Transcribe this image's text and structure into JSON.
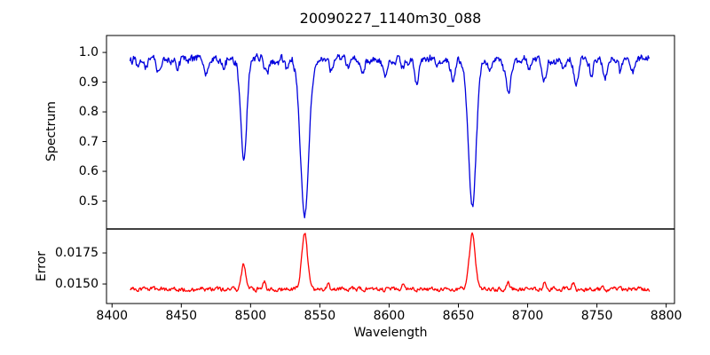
{
  "figure": {
    "title": "20090227_1140m30_088",
    "background_color": "#ffffff",
    "axes_color": "#000000"
  },
  "x_axis": {
    "label": "Wavelength",
    "xlim": [
      8396,
      8806
    ],
    "ticks": [
      {
        "value": 8400,
        "label": "8400"
      },
      {
        "value": 8450,
        "label": "8450"
      },
      {
        "value": 8500,
        "label": "8500"
      },
      {
        "value": 8550,
        "label": "8550"
      },
      {
        "value": 8600,
        "label": "8600"
      },
      {
        "value": 8650,
        "label": "8650"
      },
      {
        "value": 8700,
        "label": "8700"
      },
      {
        "value": 8750,
        "label": "8750"
      },
      {
        "value": 8800,
        "label": "8800"
      }
    ]
  },
  "chart_data": [
    {
      "type": "line",
      "name": "spectrum",
      "ylabel": "Spectrum",
      "line_color": "#0000dd",
      "ylim": [
        0.406,
        1.057
      ],
      "yticks": [
        {
          "value": 1.0,
          "label": "1.0"
        },
        {
          "value": 0.9,
          "label": "0.9"
        },
        {
          "value": 0.8,
          "label": "0.8"
        },
        {
          "value": 0.7,
          "label": "0.7"
        },
        {
          "value": 0.6,
          "label": "0.6"
        },
        {
          "value": 0.5,
          "label": "0.5"
        }
      ],
      "x_range": [
        8413,
        8788
      ],
      "continuum_level": 0.982,
      "noise_amplitude": 0.011,
      "noise_seed": 20090227,
      "absorption_lines": [
        {
          "center": 8418,
          "min_value": 0.955,
          "sigma": 1.2
        },
        {
          "center": 8424,
          "min_value": 0.945,
          "sigma": 1.3
        },
        {
          "center": 8434,
          "min_value": 0.93,
          "sigma": 1.5
        },
        {
          "center": 8447,
          "min_value": 0.95,
          "sigma": 1.2
        },
        {
          "center": 8468,
          "min_value": 0.925,
          "sigma": 1.7
        },
        {
          "center": 8481,
          "min_value": 0.95,
          "sigma": 1.2
        },
        {
          "center": 8495,
          "min_value": 0.645,
          "sigma": 2.2
        },
        {
          "center": 8512,
          "min_value": 0.925,
          "sigma": 1.5
        },
        {
          "center": 8526,
          "min_value": 0.945,
          "sigma": 1.2
        },
        {
          "center": 8539,
          "min_value": 0.45,
          "sigma": 3.0
        },
        {
          "center": 8558,
          "min_value": 0.945,
          "sigma": 1.3
        },
        {
          "center": 8570,
          "min_value": 0.95,
          "sigma": 1.2
        },
        {
          "center": 8581,
          "min_value": 0.93,
          "sigma": 1.4
        },
        {
          "center": 8597,
          "min_value": 0.925,
          "sigma": 1.5
        },
        {
          "center": 8610,
          "min_value": 0.945,
          "sigma": 1.2
        },
        {
          "center": 8620,
          "min_value": 0.9,
          "sigma": 1.7
        },
        {
          "center": 8635,
          "min_value": 0.955,
          "sigma": 1.2
        },
        {
          "center": 8646,
          "min_value": 0.905,
          "sigma": 1.7
        },
        {
          "center": 8660,
          "min_value": 0.48,
          "sigma": 2.8
        },
        {
          "center": 8673,
          "min_value": 0.935,
          "sigma": 1.3
        },
        {
          "center": 8686,
          "min_value": 0.868,
          "sigma": 1.9
        },
        {
          "center": 8701,
          "min_value": 0.945,
          "sigma": 1.2
        },
        {
          "center": 8712,
          "min_value": 0.9,
          "sigma": 1.6
        },
        {
          "center": 8726,
          "min_value": 0.94,
          "sigma": 1.3
        },
        {
          "center": 8735,
          "min_value": 0.89,
          "sigma": 1.6
        },
        {
          "center": 8746,
          "min_value": 0.92,
          "sigma": 1.4
        },
        {
          "center": 8756,
          "min_value": 0.915,
          "sigma": 1.4
        },
        {
          "center": 8767,
          "min_value": 0.94,
          "sigma": 1.2
        },
        {
          "center": 8776,
          "min_value": 0.935,
          "sigma": 1.3
        }
      ]
    },
    {
      "type": "line",
      "name": "error",
      "ylabel": "Error",
      "line_color": "#ff0000",
      "ylim": [
        0.01343,
        0.01943
      ],
      "yticks": [
        {
          "value": 0.0175,
          "label": "0.0175"
        },
        {
          "value": 0.015,
          "label": "0.0150"
        }
      ],
      "x_range": [
        8413,
        8788
      ],
      "baseline_level": 0.01458,
      "noise_amplitude": 0.00025,
      "noise_seed": 1140,
      "error_peaks": [
        {
          "center": 8495,
          "peak_value": 0.0166,
          "sigma": 1.6
        },
        {
          "center": 8510,
          "peak_value": 0.01521,
          "sigma": 1.0
        },
        {
          "center": 8539,
          "peak_value": 0.0191,
          "sigma": 2.1
        },
        {
          "center": 8556,
          "peak_value": 0.01512,
          "sigma": 0.9
        },
        {
          "center": 8610,
          "peak_value": 0.01508,
          "sigma": 0.9
        },
        {
          "center": 8660,
          "peak_value": 0.019,
          "sigma": 2.1
        },
        {
          "center": 8686,
          "peak_value": 0.01518,
          "sigma": 1.1
        },
        {
          "center": 8712,
          "peak_value": 0.01506,
          "sigma": 0.9
        },
        {
          "center": 8733,
          "peak_value": 0.0151,
          "sigma": 1.0
        }
      ]
    }
  ]
}
